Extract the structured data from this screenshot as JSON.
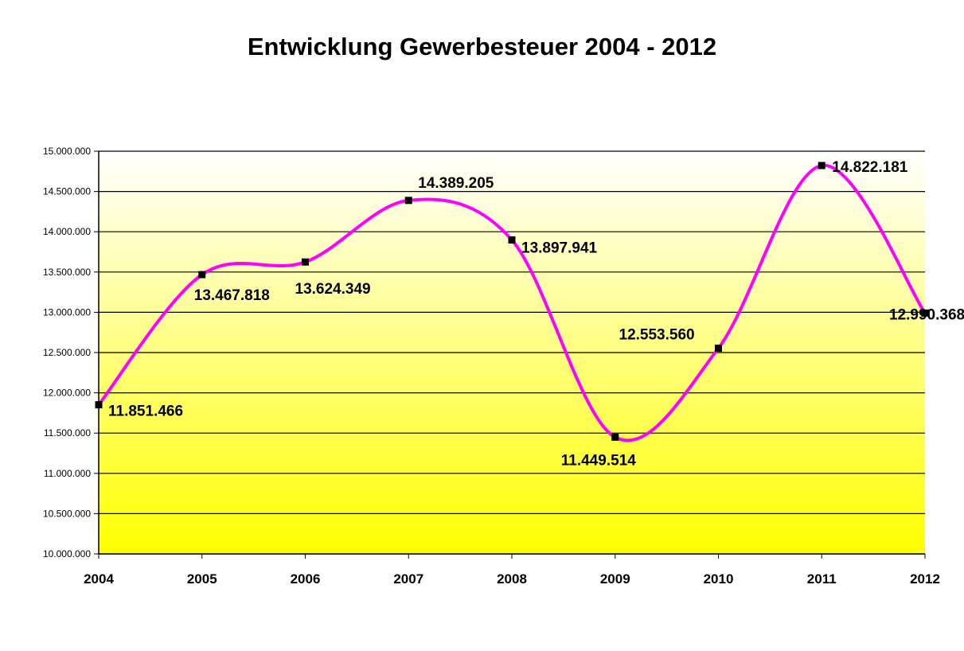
{
  "chart_data": {
    "type": "line",
    "title": "Entwicklung Gewerbesteuer 2004 - 2012",
    "xlabel": "",
    "ylabel": "",
    "ylim": [
      10000000,
      15000000
    ],
    "y_tick_step": 500000,
    "y_tick_labels": [
      "10.000.000",
      "10.500.000",
      "11.000.000",
      "11.500.000",
      "12.000.000",
      "12.500.000",
      "13.000.000",
      "13.500.000",
      "14.000.000",
      "14.500.000",
      "15.000.000"
    ],
    "categories": [
      "2004",
      "2005",
      "2006",
      "2007",
      "2008",
      "2009",
      "2010",
      "2011",
      "2012"
    ],
    "series": [
      {
        "values": [
          11851466,
          13467818,
          13624349,
          14389205,
          13897941,
          11449514,
          12553560,
          14822181,
          12990368
        ],
        "labels": [
          "11.851.466",
          "13.467.818",
          "13.624.349",
          "14.389.205",
          "13.897.941",
          "11.449.514",
          "12.553.560",
          "14.822.181",
          "12.990.368"
        ],
        "color": "#ff00ff",
        "marker_color": "#000000",
        "smooth": true
      }
    ],
    "grid": true,
    "legend": "none",
    "background_gradient": [
      "#ffffff",
      "#ffff00"
    ]
  }
}
